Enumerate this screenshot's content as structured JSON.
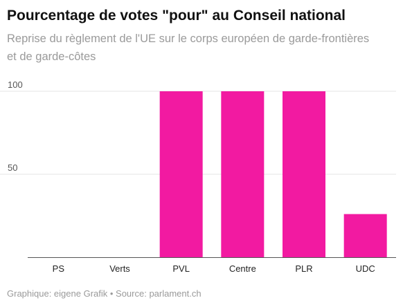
{
  "title": "Pourcentage de votes \"pour\" au Conseil national",
  "subtitle": "Reprise du règlement de l'UE sur le corps européen de garde-frontières et de garde-côtes",
  "footer": {
    "text": "Graphique: eigene Grafik • Source: parlament.ch"
  },
  "colors": {
    "bar": "#f21aa1",
    "grid": "#e4e4e4",
    "axis": "#555555"
  },
  "chart_data": {
    "type": "bar",
    "categories": [
      "PS",
      "Verts",
      "PVL",
      "Centre",
      "PLR",
      "UDC"
    ],
    "values": [
      0,
      0,
      100,
      100,
      100,
      26
    ],
    "yticks": [
      50,
      100
    ],
    "ylim": [
      0,
      100
    ],
    "grid": true
  }
}
